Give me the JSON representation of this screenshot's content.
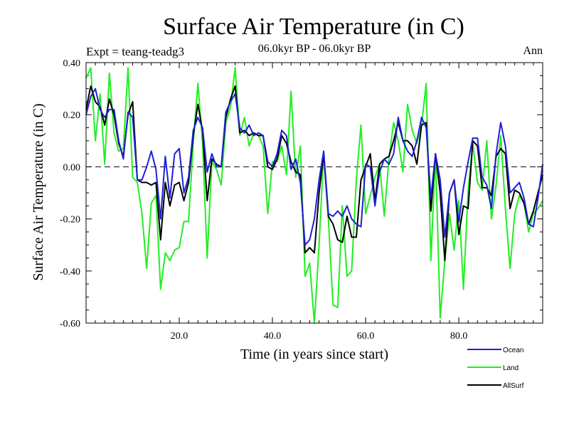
{
  "chart_data": {
    "type": "line",
    "title": "Surface Air Temperature (in C)",
    "subtitle": "06.0kyr BP - 06.0kyr BP",
    "experiment_label": "Expt = teang-teadg3",
    "season_label": "Ann",
    "xlabel": "Time (in years since start)",
    "ylabel": "Surface Air Temperature (in C)",
    "xlim": [
      0,
      98
    ],
    "ylim": [
      -0.6,
      0.4
    ],
    "xticks": [
      20,
      40,
      60,
      80
    ],
    "xtick_labels": [
      "20.0",
      "40.0",
      "60.0",
      "80.0"
    ],
    "yticks": [
      0.4,
      0.2,
      0.0,
      -0.2,
      -0.4,
      -0.6
    ],
    "ytick_labels": [
      "0.40",
      "0.20",
      "0.00",
      "-0.20",
      "-0.40",
      "-0.60"
    ],
    "zero_line": "dashed",
    "grid": false,
    "legend_position": "bottom-right",
    "series": [
      {
        "name": "Ocean",
        "color": "#1f1fd6",
        "points": [
          [
            0,
            0.2
          ],
          [
            1,
            0.27
          ],
          [
            2,
            0.3
          ],
          [
            3,
            0.22
          ],
          [
            4,
            0.19
          ],
          [
            5,
            0.22
          ],
          [
            6,
            0.22
          ],
          [
            7,
            0.1
          ],
          [
            8,
            0.03
          ],
          [
            9,
            0.21
          ],
          [
            10,
            0.19
          ],
          [
            11,
            -0.05
          ],
          [
            12,
            -0.05
          ],
          [
            13,
            0.0
          ],
          [
            14,
            0.06
          ],
          [
            15,
            -0.01
          ],
          [
            16,
            -0.2
          ],
          [
            17,
            0.04
          ],
          [
            18,
            -0.12
          ],
          [
            19,
            0.05
          ],
          [
            20,
            0.07
          ],
          [
            21,
            -0.1
          ],
          [
            22,
            -0.04
          ],
          [
            23,
            0.14
          ],
          [
            24,
            0.19
          ],
          [
            25,
            0.15
          ],
          [
            26,
            -0.02
          ],
          [
            27,
            0.05
          ],
          [
            28,
            0.0
          ],
          [
            29,
            0.0
          ],
          [
            30,
            0.21
          ],
          [
            31,
            0.25
          ],
          [
            32,
            0.28
          ],
          [
            33,
            0.15
          ],
          [
            34,
            0.13
          ],
          [
            35,
            0.16
          ],
          [
            36,
            0.12
          ],
          [
            37,
            0.13
          ],
          [
            38,
            0.12
          ],
          [
            39,
            0.02
          ],
          [
            40,
            0.0
          ],
          [
            41,
            0.05
          ],
          [
            42,
            0.14
          ],
          [
            43,
            0.12
          ],
          [
            44,
            -0.01
          ],
          [
            45,
            0.03
          ],
          [
            46,
            -0.06
          ],
          [
            47,
            -0.3
          ],
          [
            48,
            -0.28
          ],
          [
            49,
            -0.2
          ],
          [
            50,
            -0.05
          ],
          [
            51,
            0.06
          ],
          [
            52,
            -0.18
          ],
          [
            53,
            -0.19
          ],
          [
            54,
            -0.17
          ],
          [
            55,
            -0.19
          ],
          [
            56,
            -0.15
          ],
          [
            57,
            -0.2
          ],
          [
            58,
            -0.22
          ],
          [
            59,
            -0.23
          ],
          [
            60,
            0.01
          ],
          [
            61,
            0.0
          ],
          [
            62,
            -0.15
          ],
          [
            63,
            -0.02
          ],
          [
            64,
            0.03
          ],
          [
            65,
            0.01
          ],
          [
            66,
            0.05
          ],
          [
            67,
            0.19
          ],
          [
            68,
            0.1
          ],
          [
            69,
            0.06
          ],
          [
            70,
            0.04
          ],
          [
            71,
            0.1
          ],
          [
            72,
            0.19
          ],
          [
            73,
            0.15
          ],
          [
            74,
            -0.12
          ],
          [
            75,
            0.05
          ],
          [
            76,
            -0.05
          ],
          [
            77,
            -0.27
          ],
          [
            78,
            -0.1
          ],
          [
            79,
            -0.05
          ],
          [
            80,
            -0.21
          ],
          [
            81,
            -0.08
          ],
          [
            82,
            0.02
          ],
          [
            83,
            0.11
          ],
          [
            84,
            0.11
          ],
          [
            85,
            -0.04
          ],
          [
            86,
            -0.07
          ],
          [
            87,
            -0.16
          ],
          [
            88,
            0.05
          ],
          [
            89,
            0.17
          ],
          [
            90,
            0.08
          ],
          [
            91,
            -0.1
          ],
          [
            92,
            -0.08
          ],
          [
            93,
            -0.06
          ],
          [
            94,
            -0.12
          ],
          [
            95,
            -0.22
          ],
          [
            96,
            -0.23
          ],
          [
            97,
            -0.12
          ],
          [
            98,
            0.01
          ]
        ]
      },
      {
        "name": "Land",
        "color": "#22ee22",
        "points": [
          [
            0,
            0.34
          ],
          [
            1,
            0.38
          ],
          [
            2,
            0.1
          ],
          [
            3,
            0.28
          ],
          [
            4,
            0.01
          ],
          [
            5,
            0.36
          ],
          [
            6,
            0.13
          ],
          [
            7,
            0.06
          ],
          [
            8,
            0.07
          ],
          [
            9,
            0.38
          ],
          [
            10,
            -0.04
          ],
          [
            11,
            -0.06
          ],
          [
            12,
            -0.18
          ],
          [
            13,
            -0.39
          ],
          [
            14,
            -0.14
          ],
          [
            15,
            -0.11
          ],
          [
            16,
            -0.47
          ],
          [
            17,
            -0.33
          ],
          [
            18,
            -0.36
          ],
          [
            19,
            -0.32
          ],
          [
            20,
            -0.31
          ],
          [
            21,
            -0.21
          ],
          [
            22,
            -0.21
          ],
          [
            23,
            0.09
          ],
          [
            24,
            0.32
          ],
          [
            25,
            0.09
          ],
          [
            26,
            -0.35
          ],
          [
            27,
            0.02
          ],
          [
            28,
            -0.01
          ],
          [
            29,
            -0.07
          ],
          [
            30,
            0.17
          ],
          [
            31,
            0.23
          ],
          [
            32,
            0.38
          ],
          [
            33,
            0.12
          ],
          [
            34,
            0.19
          ],
          [
            35,
            0.08
          ],
          [
            36,
            0.13
          ],
          [
            37,
            0.12
          ],
          [
            38,
            0.08
          ],
          [
            39,
            -0.18
          ],
          [
            40,
            0.02
          ],
          [
            41,
            0.02
          ],
          [
            42,
            0.08
          ],
          [
            43,
            -0.03
          ],
          [
            44,
            0.29
          ],
          [
            45,
            -0.04
          ],
          [
            46,
            0.08
          ],
          [
            47,
            -0.42
          ],
          [
            48,
            -0.37
          ],
          [
            49,
            -0.6
          ],
          [
            50,
            -0.3
          ],
          [
            51,
            0.05
          ],
          [
            52,
            -0.2
          ],
          [
            53,
            -0.53
          ],
          [
            54,
            -0.54
          ],
          [
            55,
            -0.15
          ],
          [
            56,
            -0.42
          ],
          [
            57,
            -0.4
          ],
          [
            58,
            -0.05
          ],
          [
            59,
            0.16
          ],
          [
            60,
            -0.18
          ],
          [
            61,
            -0.11
          ],
          [
            62,
            -0.04
          ],
          [
            63,
            0.01
          ],
          [
            64,
            -0.19
          ],
          [
            65,
            0.03
          ],
          [
            66,
            0.17
          ],
          [
            67,
            0.1
          ],
          [
            68,
            -0.02
          ],
          [
            69,
            0.24
          ],
          [
            70,
            0.14
          ],
          [
            71,
            0.09
          ],
          [
            72,
            0.16
          ],
          [
            73,
            0.32
          ],
          [
            74,
            -0.36
          ],
          [
            75,
            0.05
          ],
          [
            76,
            -0.58
          ],
          [
            77,
            -0.36
          ],
          [
            78,
            -0.18
          ],
          [
            79,
            -0.32
          ],
          [
            80,
            -0.13
          ],
          [
            81,
            -0.47
          ],
          [
            82,
            -0.09
          ],
          [
            83,
            0.09
          ],
          [
            84,
            -0.06
          ],
          [
            85,
            -0.09
          ],
          [
            86,
            0.1
          ],
          [
            87,
            -0.2
          ],
          [
            88,
            -0.07
          ],
          [
            89,
            0.12
          ],
          [
            90,
            -0.16
          ],
          [
            91,
            -0.39
          ],
          [
            92,
            -0.18
          ],
          [
            93,
            -0.11
          ],
          [
            94,
            -0.14
          ],
          [
            95,
            -0.25
          ],
          [
            96,
            -0.18
          ],
          [
            97,
            -0.16
          ],
          [
            98,
            -0.13
          ]
        ]
      },
      {
        "name": "AllSurf",
        "color": "#000000",
        "points": [
          [
            0,
            0.22
          ],
          [
            1,
            0.31
          ],
          [
            2,
            0.25
          ],
          [
            3,
            0.23
          ],
          [
            4,
            0.16
          ],
          [
            5,
            0.26
          ],
          [
            6,
            0.2
          ],
          [
            7,
            0.09
          ],
          [
            8,
            0.04
          ],
          [
            9,
            0.2
          ],
          [
            10,
            0.25
          ],
          [
            11,
            -0.05
          ],
          [
            12,
            -0.06
          ],
          [
            13,
            -0.06
          ],
          [
            14,
            -0.07
          ],
          [
            15,
            -0.06
          ],
          [
            16,
            -0.28
          ],
          [
            17,
            -0.06
          ],
          [
            18,
            -0.15
          ],
          [
            19,
            -0.07
          ],
          [
            20,
            -0.06
          ],
          [
            21,
            -0.13
          ],
          [
            22,
            -0.06
          ],
          [
            23,
            0.12
          ],
          [
            24,
            0.24
          ],
          [
            25,
            0.14
          ],
          [
            26,
            -0.13
          ],
          [
            27,
            0.03
          ],
          [
            28,
            0.01
          ],
          [
            29,
            0.0
          ],
          [
            30,
            0.19
          ],
          [
            31,
            0.26
          ],
          [
            32,
            0.31
          ],
          [
            33,
            0.13
          ],
          [
            34,
            0.14
          ],
          [
            35,
            0.12
          ],
          [
            36,
            0.13
          ],
          [
            37,
            0.12
          ],
          [
            38,
            0.12
          ],
          [
            39,
            0.0
          ],
          [
            40,
            -0.01
          ],
          [
            41,
            0.03
          ],
          [
            42,
            0.12
          ],
          [
            43,
            0.09
          ],
          [
            44,
            0.02
          ],
          [
            45,
            -0.02
          ],
          [
            46,
            -0.03
          ],
          [
            47,
            -0.33
          ],
          [
            48,
            -0.31
          ],
          [
            49,
            -0.33
          ],
          [
            50,
            -0.1
          ],
          [
            51,
            0.05
          ],
          [
            52,
            -0.19
          ],
          [
            53,
            -0.22
          ],
          [
            54,
            -0.28
          ],
          [
            55,
            -0.29
          ],
          [
            56,
            -0.19
          ],
          [
            57,
            -0.27
          ],
          [
            58,
            -0.27
          ],
          [
            59,
            -0.05
          ],
          [
            60,
            0.0
          ],
          [
            61,
            0.05
          ],
          [
            62,
            -0.13
          ],
          [
            63,
            0.01
          ],
          [
            64,
            0.03
          ],
          [
            65,
            0.04
          ],
          [
            66,
            0.1
          ],
          [
            67,
            0.17
          ],
          [
            68,
            0.1
          ],
          [
            69,
            0.1
          ],
          [
            70,
            0.08
          ],
          [
            71,
            0.01
          ],
          [
            72,
            0.16
          ],
          [
            73,
            0.17
          ],
          [
            74,
            -0.17
          ],
          [
            75,
            0.05
          ],
          [
            76,
            -0.1
          ],
          [
            77,
            -0.36
          ],
          [
            78,
            -0.1
          ],
          [
            79,
            -0.05
          ],
          [
            80,
            -0.26
          ],
          [
            81,
            -0.15
          ],
          [
            82,
            -0.16
          ],
          [
            83,
            0.1
          ],
          [
            84,
            0.08
          ],
          [
            85,
            -0.08
          ],
          [
            86,
            -0.08
          ],
          [
            87,
            -0.11
          ],
          [
            88,
            0.04
          ],
          [
            89,
            0.07
          ],
          [
            90,
            0.05
          ],
          [
            91,
            -0.16
          ],
          [
            92,
            -0.09
          ],
          [
            93,
            -0.1
          ],
          [
            94,
            -0.14
          ],
          [
            95,
            -0.22
          ],
          [
            96,
            -0.17
          ],
          [
            97,
            -0.1
          ],
          [
            98,
            -0.03
          ]
        ]
      }
    ]
  }
}
